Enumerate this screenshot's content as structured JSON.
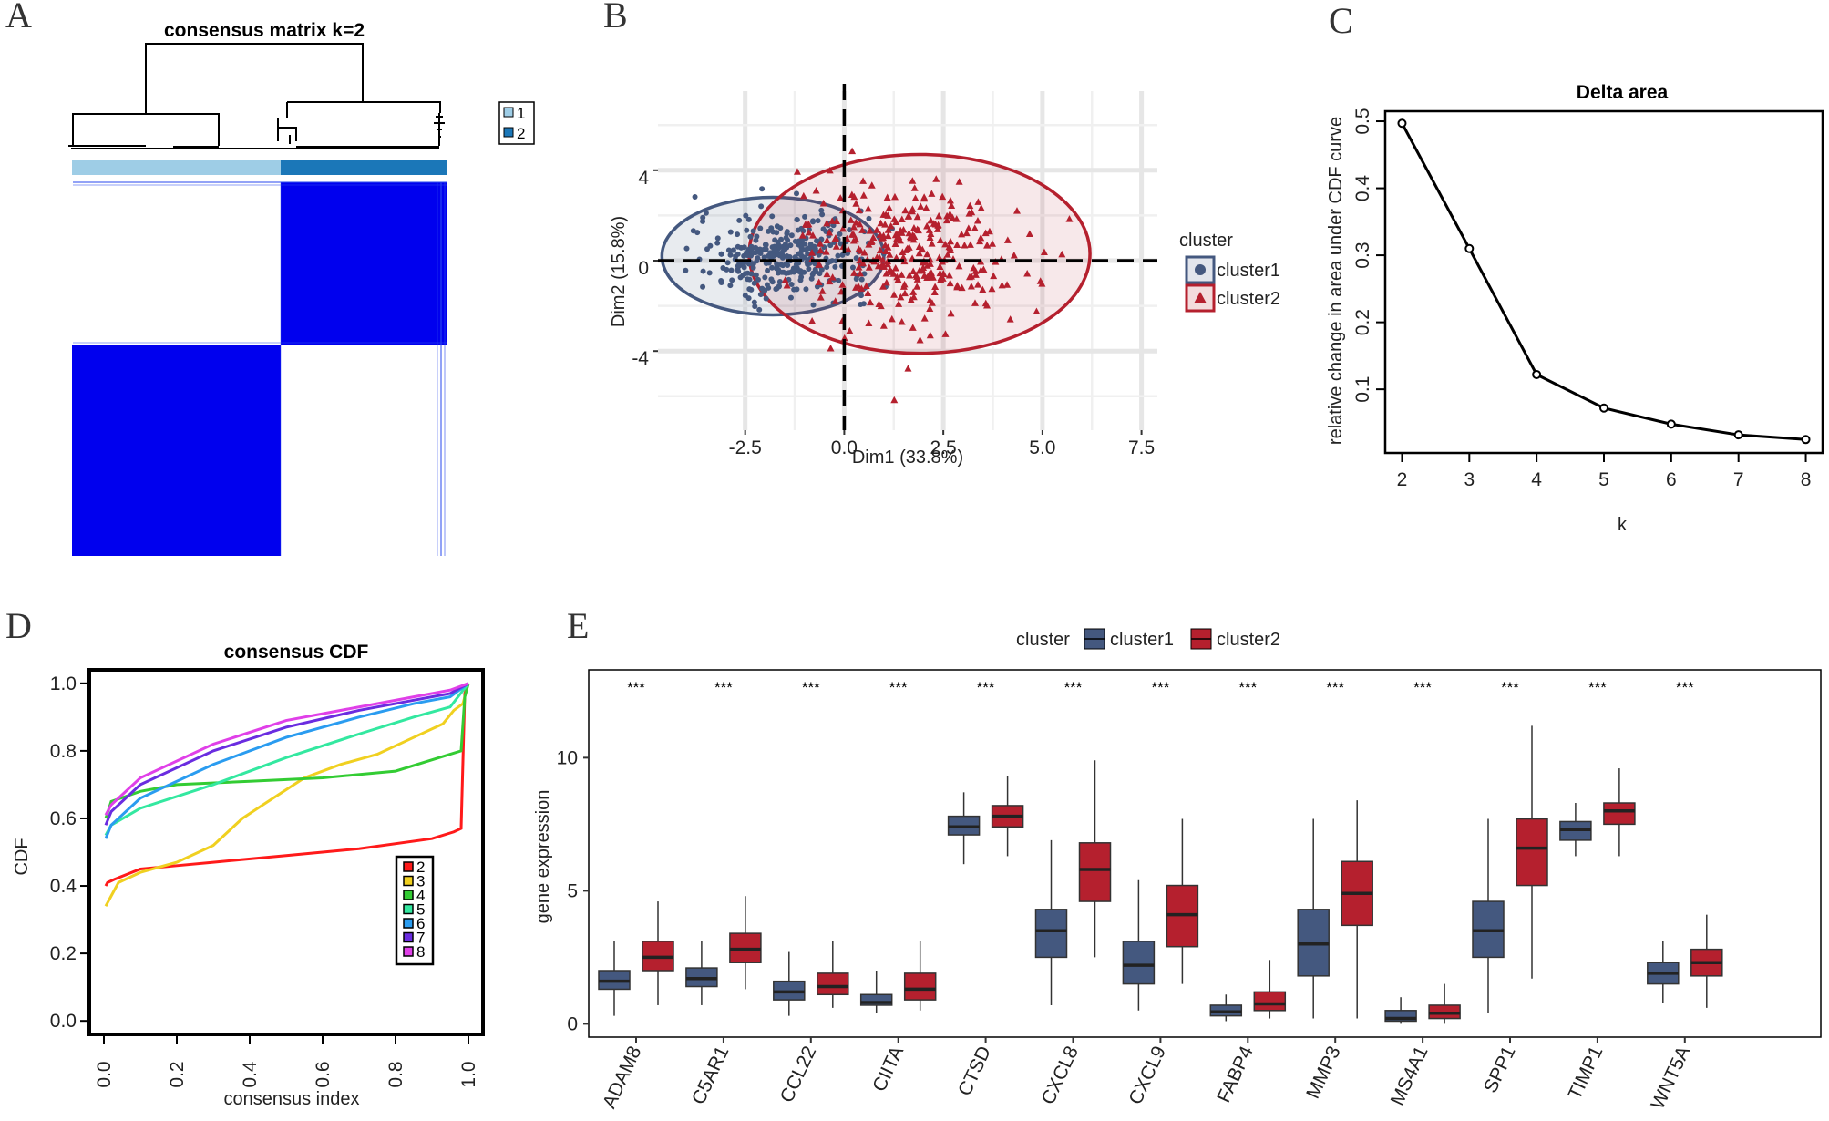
{
  "panel_labels": [
    "A",
    "B",
    "C",
    "D",
    "E"
  ],
  "colors": {
    "cluster1": "#44587f",
    "cluster2": "#b5202e",
    "consensus_blue": "#0000ee",
    "legend_light": "#9ecde6",
    "legend_dark": "#1b77b8"
  },
  "chart_data": [
    {
      "id": "A",
      "type": "heatmap",
      "title": "consensus matrix k=2",
      "legend": [
        "1",
        "2"
      ],
      "blocks": [
        {
          "rows": "cluster 1",
          "cols": "cluster 1",
          "value": 0
        },
        {
          "rows": "cluster 1",
          "cols": "cluster 2",
          "value": 1
        },
        {
          "rows": "cluster 2",
          "cols": "cluster 1",
          "value": 1
        },
        {
          "rows": "cluster 2",
          "cols": "cluster 2",
          "value": 0
        }
      ]
    },
    {
      "id": "B",
      "type": "scatter",
      "xlabel": "Dim1 (33.8%)",
      "ylabel": "Dim2 (15.8%)",
      "xlim": [
        -4.7,
        7.9
      ],
      "ylim": [
        -7.5,
        7.5
      ],
      "xticks": [
        "-2.5",
        "0.0",
        "2.5",
        "5.0",
        "7.5"
      ],
      "yticks": [
        "4",
        "0",
        "-4"
      ],
      "legend_title": "cluster",
      "series": [
        {
          "name": "cluster1",
          "marker": "circle",
          "ellipse": {
            "cx": -1.8,
            "cy": 0.2,
            "rx": 2.8,
            "ry": 2.6
          }
        },
        {
          "name": "cluster2",
          "marker": "triangle",
          "ellipse": {
            "cx": 1.9,
            "cy": 0.3,
            "rx": 4.3,
            "ry": 4.4
          }
        }
      ]
    },
    {
      "id": "C",
      "type": "line",
      "title": "Delta area",
      "xlabel": "k",
      "ylabel": "relative change in area under CDF curve",
      "x": [
        2,
        3,
        4,
        5,
        6,
        7,
        8
      ],
      "y": [
        0.497,
        0.31,
        0.122,
        0.072,
        0.048,
        0.032,
        0.025
      ],
      "xlim": [
        1.75,
        8.25
      ],
      "ylim": [
        0.005,
        0.515
      ],
      "yticks": [
        "0.1",
        "0.2",
        "0.3",
        "0.4",
        "0.5"
      ],
      "xticks": [
        "2",
        "3",
        "4",
        "5",
        "6",
        "7",
        "8"
      ]
    },
    {
      "id": "D",
      "type": "line",
      "title": "consensus CDF",
      "xlabel": "consensus index",
      "ylabel": "CDF",
      "xlim": [
        -0.04,
        1.04
      ],
      "ylim": [
        -0.04,
        1.04
      ],
      "xticks": [
        "0.0",
        "0.2",
        "0.4",
        "0.6",
        "0.8",
        "1.0"
      ],
      "yticks": [
        "0.0",
        "0.2",
        "0.4",
        "0.6",
        "0.8",
        "1.0"
      ],
      "series": [
        {
          "name": "2",
          "color": "#ff1a1a",
          "points": [
            [
              0.005,
              0.4
            ],
            [
              0.01,
              0.41
            ],
            [
              0.03,
              0.42
            ],
            [
              0.1,
              0.45
            ],
            [
              0.2,
              0.46
            ],
            [
              0.3,
              0.47
            ],
            [
              0.5,
              0.49
            ],
            [
              0.7,
              0.51
            ],
            [
              0.9,
              0.54
            ],
            [
              0.96,
              0.56
            ],
            [
              0.98,
              0.57
            ],
            [
              0.99,
              0.97
            ],
            [
              1.0,
              1.0
            ]
          ]
        },
        {
          "name": "3",
          "color": "#f0d020",
          "points": [
            [
              0.005,
              0.34
            ],
            [
              0.01,
              0.35
            ],
            [
              0.02,
              0.37
            ],
            [
              0.04,
              0.41
            ],
            [
              0.1,
              0.44
            ],
            [
              0.2,
              0.47
            ],
            [
              0.3,
              0.52
            ],
            [
              0.38,
              0.6
            ],
            [
              0.45,
              0.65
            ],
            [
              0.55,
              0.72
            ],
            [
              0.65,
              0.76
            ],
            [
              0.75,
              0.79
            ],
            [
              0.85,
              0.84
            ],
            [
              0.93,
              0.88
            ],
            [
              0.96,
              0.92
            ],
            [
              0.985,
              0.94
            ],
            [
              1.0,
              1.0
            ]
          ]
        },
        {
          "name": "4",
          "color": "#33cc33",
          "points": [
            [
              0.005,
              0.6
            ],
            [
              0.02,
              0.65
            ],
            [
              0.1,
              0.68
            ],
            [
              0.2,
              0.7
            ],
            [
              0.4,
              0.71
            ],
            [
              0.6,
              0.72
            ],
            [
              0.8,
              0.74
            ],
            [
              0.95,
              0.79
            ],
            [
              0.98,
              0.8
            ],
            [
              0.99,
              0.96
            ],
            [
              1.0,
              1.0
            ]
          ]
        },
        {
          "name": "5",
          "color": "#33e8a0",
          "points": [
            [
              0.005,
              0.55
            ],
            [
              0.02,
              0.58
            ],
            [
              0.1,
              0.63
            ],
            [
              0.3,
              0.7
            ],
            [
              0.5,
              0.78
            ],
            [
              0.7,
              0.85
            ],
            [
              0.85,
              0.9
            ],
            [
              0.95,
              0.93
            ],
            [
              1.0,
              1.0
            ]
          ]
        },
        {
          "name": "6",
          "color": "#2a9cf0",
          "points": [
            [
              0.005,
              0.54
            ],
            [
              0.02,
              0.58
            ],
            [
              0.1,
              0.66
            ],
            [
              0.3,
              0.76
            ],
            [
              0.5,
              0.84
            ],
            [
              0.7,
              0.9
            ],
            [
              0.85,
              0.94
            ],
            [
              0.95,
              0.96
            ],
            [
              1.0,
              1.0
            ]
          ]
        },
        {
          "name": "7",
          "color": "#6a2ce0",
          "points": [
            [
              0.005,
              0.58
            ],
            [
              0.02,
              0.62
            ],
            [
              0.1,
              0.7
            ],
            [
              0.3,
              0.8
            ],
            [
              0.5,
              0.87
            ],
            [
              0.7,
              0.92
            ],
            [
              0.85,
              0.95
            ],
            [
              0.95,
              0.97
            ],
            [
              1.0,
              1.0
            ]
          ]
        },
        {
          "name": "8",
          "color": "#e040e8",
          "points": [
            [
              0.005,
              0.61
            ],
            [
              0.02,
              0.64
            ],
            [
              0.1,
              0.72
            ],
            [
              0.3,
              0.82
            ],
            [
              0.5,
              0.89
            ],
            [
              0.7,
              0.93
            ],
            [
              0.85,
              0.96
            ],
            [
              0.95,
              0.98
            ],
            [
              1.0,
              1.0
            ]
          ]
        }
      ]
    },
    {
      "id": "E",
      "type": "bar",
      "subtype": "boxplot",
      "xlabel": "",
      "ylabel": "gene expression",
      "legend_title": "cluster",
      "legend": [
        "cluster1",
        "cluster2"
      ],
      "ylim": [
        -0.5,
        13.3
      ],
      "yticks": [
        "0",
        "5",
        "10"
      ],
      "significance": "***",
      "genes": [
        "ADAM8",
        "C5AR1",
        "CCL22",
        "CIITA",
        "CTSD",
        "CXCL8",
        "CXCL9",
        "FABP4",
        "MMP3",
        "MS4A1",
        "SPP1",
        "TIMP1",
        "WNT5A"
      ],
      "series": [
        {
          "name": "cluster1",
          "boxes": [
            [
              0.3,
              1.3,
              1.6,
              2.0,
              3.1
            ],
            [
              0.7,
              1.4,
              1.7,
              2.1,
              3.1
            ],
            [
              0.3,
              0.9,
              1.2,
              1.6,
              2.7
            ],
            [
              0.4,
              0.7,
              0.8,
              1.1,
              2.0
            ],
            [
              6.0,
              7.1,
              7.4,
              7.8,
              8.7
            ],
            [
              0.7,
              2.5,
              3.5,
              4.3,
              6.9
            ],
            [
              0.5,
              1.5,
              2.2,
              3.1,
              5.4
            ],
            [
              0.1,
              0.3,
              0.45,
              0.7,
              1.1
            ],
            [
              0.2,
              1.8,
              3.0,
              4.3,
              7.7
            ],
            [
              0.0,
              0.1,
              0.2,
              0.5,
              1.0
            ],
            [
              0.4,
              2.5,
              3.5,
              4.6,
              7.7
            ],
            [
              6.3,
              6.9,
              7.3,
              7.6,
              8.3
            ],
            [
              0.8,
              1.5,
              1.9,
              2.3,
              3.1
            ]
          ]
        },
        {
          "name": "cluster2",
          "boxes": [
            [
              0.7,
              2.0,
              2.5,
              3.1,
              4.6
            ],
            [
              1.3,
              2.3,
              2.8,
              3.4,
              4.8
            ],
            [
              0.6,
              1.1,
              1.4,
              1.9,
              3.1
            ],
            [
              0.5,
              0.9,
              1.3,
              1.9,
              3.1
            ],
            [
              6.3,
              7.4,
              7.8,
              8.2,
              9.3
            ],
            [
              2.5,
              4.6,
              5.8,
              6.8,
              9.9
            ],
            [
              1.5,
              2.9,
              4.1,
              5.2,
              7.7
            ],
            [
              0.2,
              0.5,
              0.75,
              1.2,
              2.4
            ],
            [
              0.2,
              3.7,
              4.9,
              6.1,
              8.4
            ],
            [
              0.0,
              0.2,
              0.4,
              0.7,
              1.5
            ],
            [
              1.7,
              5.2,
              6.6,
              7.7,
              11.2
            ],
            [
              6.3,
              7.5,
              8.0,
              8.3,
              9.6
            ],
            [
              0.6,
              1.8,
              2.3,
              2.8,
              4.1
            ]
          ]
        }
      ]
    }
  ]
}
